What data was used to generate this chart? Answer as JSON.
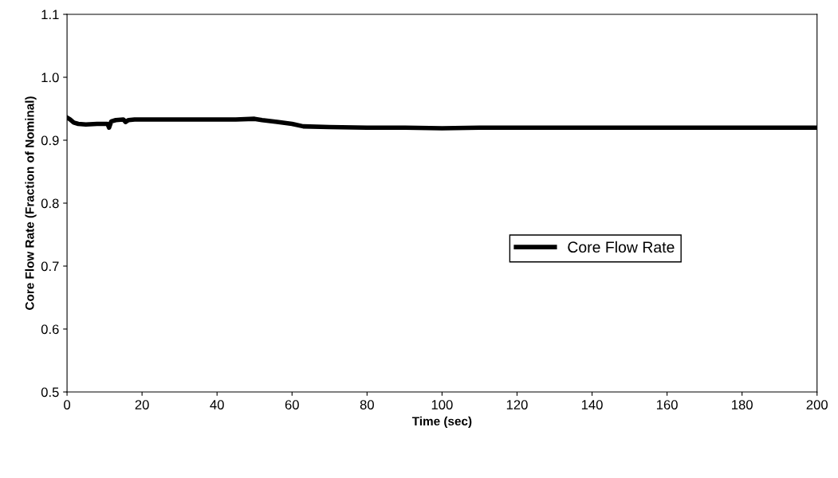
{
  "chart_data": {
    "type": "line",
    "xlabel": "Time (sec)",
    "ylabel": "Core Flow Rate (Fraction of Nominal)",
    "x": [
      0,
      0.8,
      1.8,
      3,
      5,
      8,
      10.8,
      11.2,
      11.8,
      13,
      15,
      15.6,
      16.4,
      18,
      25,
      35,
      45,
      50,
      52,
      56,
      60,
      63,
      70,
      80,
      90,
      100,
      110,
      120,
      140,
      160,
      180,
      200
    ],
    "series": [
      {
        "name": "Core Flow Rate",
        "color": "#000000",
        "values": [
          0.936,
          0.933,
          0.928,
          0.926,
          0.925,
          0.926,
          0.926,
          0.92,
          0.93,
          0.932,
          0.933,
          0.929,
          0.932,
          0.933,
          0.933,
          0.933,
          0.933,
          0.934,
          0.932,
          0.929,
          0.926,
          0.922,
          0.921,
          0.92,
          0.92,
          0.919,
          0.92,
          0.92,
          0.92,
          0.92,
          0.92,
          0.92
        ]
      }
    ],
    "xlim": [
      0,
      200
    ],
    "xticks": [
      0,
      20,
      40,
      60,
      80,
      100,
      120,
      140,
      160,
      180,
      200
    ],
    "ylim": [
      0.5,
      1.1
    ],
    "yticks": [
      {
        "value": 0.5,
        "label": "0.5"
      },
      {
        "value": 0.6,
        "label": "0.6"
      },
      {
        "value": 0.7,
        "label": "0.7"
      },
      {
        "value": 0.8,
        "label": "0.8"
      },
      {
        "value": 0.9,
        "label": "0.9"
      },
      {
        "value": 1.0,
        "label": "1.0"
      },
      {
        "value": 1.1,
        "label": "1.1"
      }
    ],
    "legend": "right",
    "grid": false,
    "marker": "none",
    "line_style": "solid"
  }
}
